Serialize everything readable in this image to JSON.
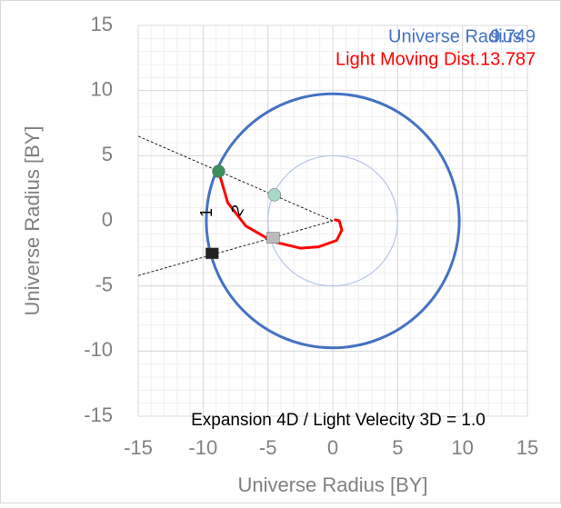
{
  "chart_data": {
    "type": "scatter",
    "xlabel": "Universe Radius [BY]",
    "ylabel": "Universe Radius [BY]",
    "xlim": [
      -15,
      15
    ],
    "ylim": [
      -15,
      15
    ],
    "xticks": [
      -15,
      -10,
      -5,
      0,
      5,
      10,
      15
    ],
    "yticks": [
      -15,
      -10,
      -5,
      0,
      5,
      10,
      15
    ],
    "grid": true,
    "minor_grid_step": 1,
    "circles": [
      {
        "name": "Universe Radius",
        "value": 9.749,
        "color": "#4472c4"
      },
      {
        "value": 5,
        "color": "#b4c7e7"
      }
    ],
    "series": [
      {
        "name": "Light Moving Dist.",
        "value": 13.787,
        "color": "#ff0000",
        "x": [
          -8.8,
          -8.1,
          -6.7,
          -4.6,
          -2.5,
          -1.1,
          0.3,
          0.7,
          0.5,
          0.1
        ],
        "y": [
          3.8,
          1.4,
          -0.4,
          -1.6,
          -2.1,
          -2.0,
          -1.5,
          -0.7,
          0.0,
          0.1
        ]
      }
    ],
    "guides": [
      {
        "x": [
          -15,
          0
        ],
        "y": [
          6.5,
          0
        ]
      },
      {
        "x": [
          -15,
          0
        ],
        "y": [
          -4.2,
          0
        ]
      }
    ],
    "points": {
      "x": [
        -8.8,
        -4.5,
        -9.3,
        -4.6
      ],
      "y": [
        3.8,
        2.0,
        -2.5,
        -1.3
      ],
      "colors": [
        "#3a8f5a",
        "#a8d8c8",
        "#222222",
        "#bbbbbb"
      ]
    },
    "annotations": [
      "1",
      "2"
    ],
    "note": "Expansion 4D / Light Velecity 3D = 1.0"
  }
}
